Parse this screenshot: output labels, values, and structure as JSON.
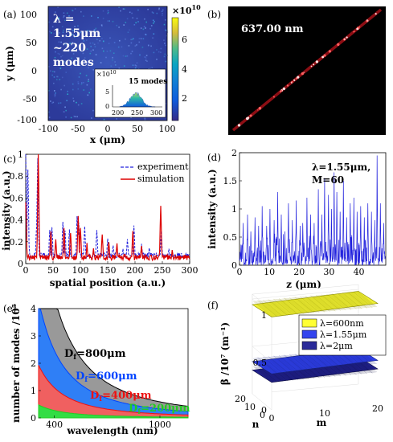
{
  "chart_data": [
    {
      "id": "a",
      "panel_label": "(a)",
      "type": "heatmap",
      "annotation": [
        "λ =",
        "1.55μm",
        "~220",
        "modes"
      ],
      "xlabel": "x (μm)",
      "ylabel": "y (μm)",
      "xticks": [
        "-100",
        "-50",
        "0",
        "50",
        "100"
      ],
      "yticks": [
        "100",
        "50",
        "0",
        "-50",
        "-100"
      ],
      "xlim": [
        -100,
        100
      ],
      "ylim": [
        -100,
        100
      ],
      "colorbar": {
        "ticks": [
          "2",
          "4",
          "6"
        ],
        "scale": "×10",
        "exponent": "10",
        "range": [
          0,
          7.4
        ]
      },
      "inset": {
        "type": "area",
        "title": "15 modes",
        "scale": "×10",
        "exponent": "10",
        "xticks": [
          "200",
          "250",
          "300"
        ],
        "yticks": [
          "5",
          "0"
        ],
        "xlim": [
          180,
          320
        ],
        "ylim": [
          0,
          5
        ]
      }
    },
    {
      "id": "b",
      "panel_label": "(b)",
      "type": "image",
      "annotation": "637.00 nm"
    },
    {
      "id": "c",
      "panel_label": "(c)",
      "type": "line",
      "xlabel": "spatial position (a.u.)",
      "ylabel": "intensity (a.u.)",
      "xticks": [
        "0",
        "50",
        "100",
        "150",
        "200",
        "250",
        "300"
      ],
      "yticks": [
        "1",
        "0.8",
        "0.6",
        "0.4",
        "0.2",
        "0"
      ],
      "xlim": [
        0,
        300
      ],
      "ylim": [
        0,
        1
      ],
      "legend_position": "top-right",
      "series": [
        {
          "name": "experiment",
          "color": "#2222dd",
          "style": "dashed",
          "peaks": [
            [
              0,
              1.0
            ],
            [
              4,
              0.85
            ],
            [
              20,
              0.35
            ],
            [
              22,
              0.95
            ],
            [
              44,
              0.28
            ],
            [
              48,
              0.32
            ],
            [
              68,
              0.38
            ],
            [
              72,
              0.3
            ],
            [
              80,
              0.3
            ],
            [
              94,
              0.42
            ],
            [
              97,
              0.35
            ],
            [
              108,
              0.32
            ],
            [
              130,
              0.3
            ],
            [
              150,
              0.22
            ],
            [
              160,
              0.15
            ],
            [
              178,
              0.13
            ],
            [
              186,
              0.22
            ],
            [
              198,
              0.34
            ],
            [
              212,
              0.16
            ],
            [
              226,
              0.14
            ],
            [
              248,
              0.28
            ],
            [
              262,
              0.12
            ],
            [
              278,
              0.06
            ]
          ],
          "baseline": 0.05
        },
        {
          "name": "simulation",
          "color": "#dd0000",
          "style": "solid",
          "peaks": [
            [
              0,
              0.55
            ],
            [
              23,
              1.0
            ],
            [
              46,
              0.28
            ],
            [
              55,
              0.2
            ],
            [
              70,
              0.3
            ],
            [
              82,
              0.26
            ],
            [
              96,
              0.42
            ],
            [
              100,
              0.32
            ],
            [
              112,
              0.16
            ],
            [
              124,
              0.12
            ],
            [
              140,
              0.24
            ],
            [
              152,
              0.18
            ],
            [
              167,
              0.16
            ],
            [
              180,
              0.08
            ],
            [
              196,
              0.28
            ],
            [
              212,
              0.15
            ],
            [
              247,
              0.5
            ],
            [
              268,
              0.1
            ]
          ],
          "baseline": 0.03
        }
      ]
    },
    {
      "id": "d",
      "panel_label": "(d)",
      "type": "line",
      "annotation": [
        "λ=1.55μm,",
        "M=60"
      ],
      "xlabel": "z (μm)",
      "ylabel": "intensity (a.u.)",
      "xticks": [
        "0",
        "10",
        "20",
        "30",
        "40"
      ],
      "yticks": [
        "2",
        "1.5",
        "1",
        "0.5",
        "0"
      ],
      "xlim": [
        0,
        49
      ],
      "ylim": [
        0,
        2
      ],
      "series": [
        {
          "color": "#2222dd",
          "peaks": [
            [
              1.2,
              0.75
            ],
            [
              2.7,
              0.9
            ],
            [
              3.8,
              0.6
            ],
            [
              5.2,
              0.85
            ],
            [
              6.4,
              0.7
            ],
            [
              7.6,
              1.05
            ],
            [
              9.1,
              0.7
            ],
            [
              10.2,
              1.0
            ],
            [
              11.6,
              0.8
            ],
            [
              12.8,
              1.3
            ],
            [
              14.0,
              0.9
            ],
            [
              15.2,
              0.6
            ],
            [
              16.4,
              1.1
            ],
            [
              17.7,
              0.8
            ],
            [
              19.0,
              1.15
            ],
            [
              20.3,
              0.7
            ],
            [
              21.2,
              0.75
            ],
            [
              22.6,
              1.2
            ],
            [
              23.8,
              0.9
            ],
            [
              25.0,
              0.75
            ],
            [
              26.4,
              1.35
            ],
            [
              27.6,
              0.9
            ],
            [
              28.5,
              1.55
            ],
            [
              29.8,
              1.25
            ],
            [
              30.8,
              1.0
            ],
            [
              31.7,
              1.65
            ],
            [
              32.6,
              1.3
            ],
            [
              33.7,
              0.95
            ],
            [
              34.8,
              1.5
            ],
            [
              35.9,
              0.85
            ],
            [
              37.1,
              1.1
            ],
            [
              38.3,
              1.2
            ],
            [
              39.4,
              0.95
            ],
            [
              40.6,
              1.05
            ],
            [
              41.8,
              0.85
            ],
            [
              43.0,
              1.1
            ],
            [
              44.2,
              0.95
            ],
            [
              45.3,
              0.8
            ],
            [
              46.1,
              1.95
            ],
            [
              47.2,
              1.1
            ],
            [
              48.3,
              0.75
            ]
          ]
        }
      ]
    },
    {
      "id": "e",
      "panel_label": "(e)",
      "type": "area",
      "xlabel": "wavelength (nm)",
      "ylabel": "number of modes /10⁵",
      "xticks": [
        "400",
        "1000"
      ],
      "yticks": [
        "4",
        "3",
        "2",
        "1",
        "0"
      ],
      "xlim": [
        310,
        1160
      ],
      "ylim": [
        0,
        4
      ],
      "series": [
        {
          "name": "Df=800μm",
          "text": "D",
          "sub": "f",
          "rest": "=800μm",
          "color": "#000000",
          "fill": "#999999",
          "coef": 3.4
        },
        {
          "name": "Df=600μm",
          "text": "D",
          "sub": "f",
          "rest": "=600μm",
          "color": "#0044ff",
          "fill": "#2f7ff6",
          "coef": 1.9
        },
        {
          "name": "Df=400μm",
          "text": "D",
          "sub": "f",
          "rest": "=400μm",
          "color": "#ee1111",
          "fill": "#f06060",
          "coef": 0.85
        },
        {
          "name": "Df=200μm",
          "text": "D",
          "sub": "f",
          "rest": "=200μm",
          "color": "#22cc22",
          "fill": "#33dd44",
          "coef": 0.21
        }
      ]
    },
    {
      "id": "f",
      "panel_label": "(f)",
      "type": "surface",
      "zlabel": "β /10⁷ (m⁻¹)",
      "xlabel": "n",
      "ylabel": "m",
      "zticks": [
        "1",
        "0.5",
        "0"
      ],
      "xticks": [
        "20",
        "10",
        "0"
      ],
      "yticks": [
        "0",
        "10",
        "20"
      ],
      "legend_position": "top-right",
      "legend": [
        {
          "label": "λ=600nm",
          "color": "#ffff33"
        },
        {
          "label": "λ=1.55μm",
          "color": "#3344ee"
        },
        {
          "label": "λ=2μm",
          "color": "#2a2a99"
        }
      ],
      "surfaces": [
        {
          "label": "λ=600nm",
          "z": 0.98,
          "color": "#eeee33",
          "line": "#888800"
        },
        {
          "label": "λ=1.55μm",
          "z": 0.38,
          "color": "#2d3ee8",
          "line": "#1a237a"
        },
        {
          "label": "λ=2μm",
          "z": 0.29,
          "color": "#20208a",
          "line": "#0d0d40"
        }
      ]
    }
  ]
}
